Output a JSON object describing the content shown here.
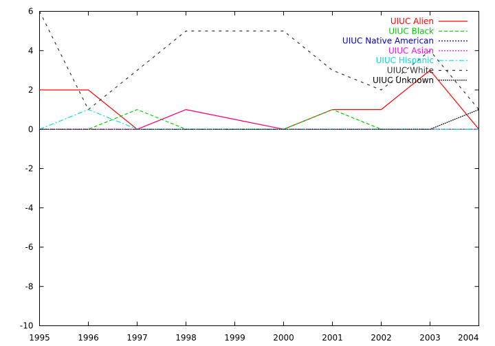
{
  "chart_data": {
    "type": "line",
    "title": "",
    "xlabel": "",
    "ylabel": "",
    "x": [
      1995,
      1996,
      1997,
      1998,
      1999,
      2000,
      2001,
      2002,
      2003,
      2004
    ],
    "xlim": [
      1995,
      2004
    ],
    "ylim": [
      -10,
      6
    ],
    "xticks": [
      "1995",
      "1996",
      "1997",
      "1998",
      "1999",
      "2000",
      "2001",
      "2002",
      "2003",
      "2004"
    ],
    "yticks": [
      "-10",
      "-8",
      "-6",
      "-4",
      "-2",
      "0",
      "2",
      "4",
      "6"
    ],
    "grid": false,
    "legend_position": "top-right",
    "series": [
      {
        "name": "UIUC Alien",
        "color": "#ff0000",
        "dash": "solid",
        "x": [
          1995,
          1996,
          1997,
          1998,
          2000,
          2001,
          2002,
          2003,
          2004
        ],
        "values": [
          2,
          2,
          0,
          1,
          0,
          1,
          1,
          3,
          0
        ]
      },
      {
        "name": "UIUC Black",
        "color": "#00cc00",
        "dash": "dashed",
        "x": [
          1995,
          1996,
          1997,
          1998,
          2000,
          2001,
          2002,
          2003,
          2004
        ],
        "values": [
          0,
          0,
          1,
          0,
          0,
          1,
          0,
          0,
          0
        ]
      },
      {
        "name": "UIUC Native American",
        "color": "#0000cc",
        "dash": "dotted",
        "x": [
          1995,
          1996,
          1997,
          1998,
          2000,
          2001,
          2002,
          2003,
          2004
        ],
        "values": [
          0,
          0,
          0,
          0,
          0,
          0,
          0,
          0,
          0
        ]
      },
      {
        "name": "UIUC Asian",
        "color": "#ff00ff",
        "dash": "dotted",
        "x": [
          1995,
          1996,
          1997,
          1998,
          2000,
          2001,
          2002,
          2003,
          2004
        ],
        "values": [
          0,
          0,
          0,
          1,
          0,
          0,
          0,
          0,
          0
        ]
      },
      {
        "name": "UIUC Hispanic",
        "color": "#00dddd",
        "dash": "dashdot",
        "x": [
          1995,
          1996,
          1997,
          1998,
          2000,
          2001,
          2002,
          2003,
          2004
        ],
        "values": [
          0,
          1,
          0,
          0,
          0,
          0,
          0,
          0,
          0
        ]
      },
      {
        "name": "UIUC White",
        "color": "#333333",
        "dash": "loosedash",
        "x": [
          1995,
          1996,
          1997,
          1998,
          2000,
          2001,
          2002,
          2003,
          2004
        ],
        "values": [
          6,
          1,
          3,
          5,
          5,
          3,
          2,
          4,
          1
        ]
      },
      {
        "name": "UIUC Unknown",
        "color": "#000000",
        "dash": "densedot",
        "x": [
          1995,
          1996,
          1997,
          1998,
          2000,
          2001,
          2002,
          2003,
          2004
        ],
        "values": [
          0,
          0,
          0,
          0,
          0,
          0,
          0,
          0,
          1
        ]
      }
    ]
  }
}
